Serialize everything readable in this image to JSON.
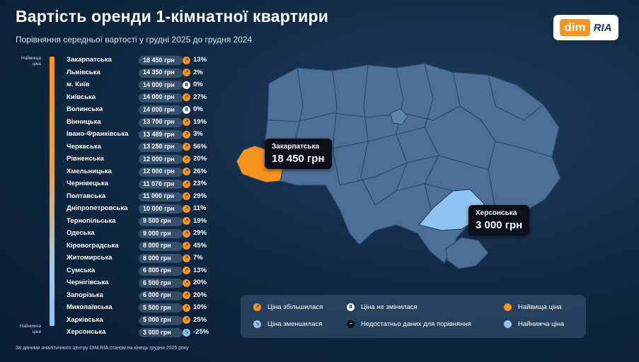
{
  "header": {
    "title": "Вартість оренди 1-кімнатної квартири",
    "subtitle": "Порівняння середньої вартості у грудні 2025 до грудня 2024"
  },
  "logo": {
    "part1": "dim",
    "part2": "RIA"
  },
  "scale": {
    "top_label": "Найвища ціна",
    "bottom_label": "Найнижча ціна"
  },
  "colors": {
    "highest": "#f7941d",
    "lowest": "#8fc3f0",
    "region_fill": "#4e6f95",
    "border": "#2b4769"
  },
  "chart_data": {
    "type": "table",
    "columns": [
      "region",
      "price",
      "trend",
      "change"
    ],
    "rows": [
      {
        "region": "Закарпатська",
        "price": "18 450 грн",
        "trend": "up",
        "change": "13%"
      },
      {
        "region": "Львівська",
        "price": "14 350 грн",
        "trend": "up",
        "change": "2%"
      },
      {
        "region": "м. Київ",
        "price": "14 000 грн",
        "trend": "same",
        "change": "0%"
      },
      {
        "region": "Київська",
        "price": "14 000 грн",
        "trend": "up",
        "change": "27%"
      },
      {
        "region": "Волинська",
        "price": "14 000 грн",
        "trend": "same",
        "change": "0%"
      },
      {
        "region": "Вінницька",
        "price": "13 700 грн",
        "trend": "up",
        "change": "19%"
      },
      {
        "region": "Івано-Франківська",
        "price": "13 489 грн",
        "trend": "up",
        "change": "3%"
      },
      {
        "region": "Черкаська",
        "price": "13 250 грн",
        "trend": "up",
        "change": "56%"
      },
      {
        "region": "Рівненська",
        "price": "12 000 грн",
        "trend": "up",
        "change": "20%"
      },
      {
        "region": "Хмельницька",
        "price": "12 000 грн",
        "trend": "up",
        "change": "26%"
      },
      {
        "region": "Чернівецька",
        "price": "11 070 грн",
        "trend": "up",
        "change": "23%"
      },
      {
        "region": "Полтавська",
        "price": "11 000 грн",
        "trend": "up",
        "change": "29%"
      },
      {
        "region": "Дніпропетровська",
        "price": "10 000 грн",
        "trend": "up",
        "change": "11%"
      },
      {
        "region": "Тернопільська",
        "price": "9 500 грн",
        "trend": "up",
        "change": "19%"
      },
      {
        "region": "Одеська",
        "price": "9 000 грн",
        "trend": "up",
        "change": "29%"
      },
      {
        "region": "Кіровоградська",
        "price": "8 000 грн",
        "trend": "up",
        "change": "45%"
      },
      {
        "region": "Житомирська",
        "price": "8 000 грн",
        "trend": "up",
        "change": "7%"
      },
      {
        "region": "Сумська",
        "price": "6 800 грн",
        "trend": "up",
        "change": "13%"
      },
      {
        "region": "Чернігівська",
        "price": "6 500 грн",
        "trend": "up",
        "change": "20%"
      },
      {
        "region": "Запорізька",
        "price": "6 000 грн",
        "trend": "up",
        "change": "20%"
      },
      {
        "region": "Миколаївська",
        "price": "5 500 грн",
        "trend": "up",
        "change": "10%"
      },
      {
        "region": "Харківська",
        "price": "5 000 грн",
        "trend": "up",
        "change": "25%"
      },
      {
        "region": "Херсонська",
        "price": "3 000 грн",
        "trend": "down",
        "change": "-25%"
      }
    ]
  },
  "callouts": {
    "highest": {
      "region": "Закарпатська",
      "value": "18 450 грн"
    },
    "lowest": {
      "region": "Херсонська",
      "value": "3 000 грн"
    }
  },
  "legend": {
    "up": "Ціна збільшилася",
    "down": "Ціна зменшилася",
    "same": "Ціна не змінилася",
    "nodata": "Недостатньо даних для порівняння",
    "highest": "Найвища ціна",
    "lowest": "Найнижча ціна"
  },
  "footnote": "За даними аналітичного центру DIM.RIA станом на кінець грудня 2025 року"
}
